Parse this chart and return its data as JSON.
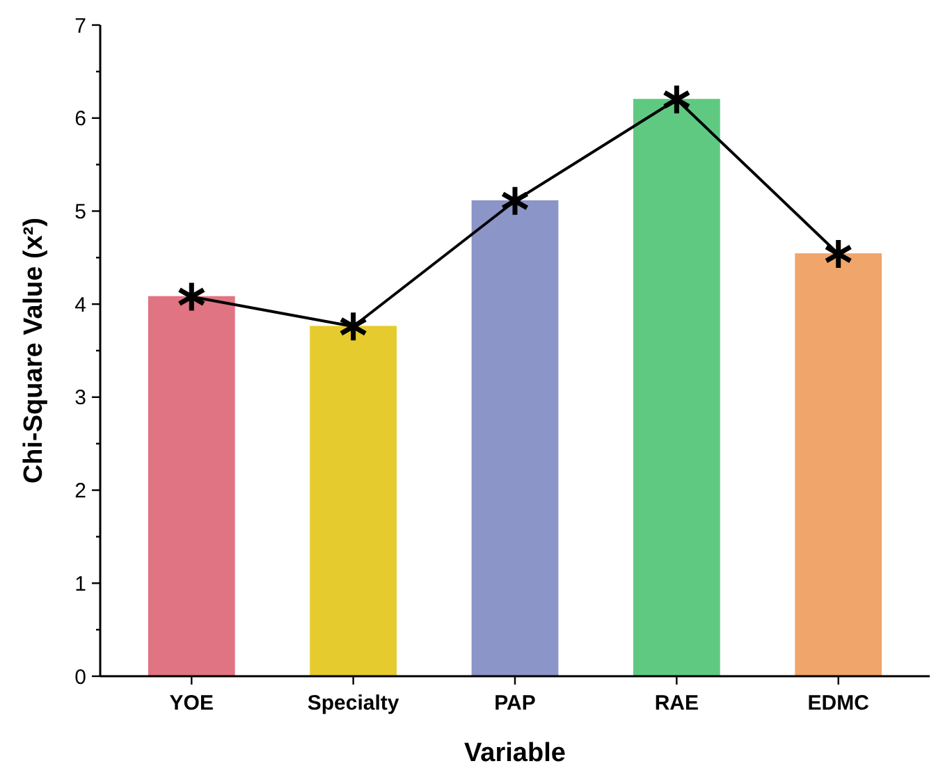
{
  "chart_data": {
    "type": "bar",
    "xlabel": "Variable",
    "ylabel": "Chi-Square Value (x²)",
    "categories": [
      "YOE",
      "Specialty",
      "PAP",
      "RAE",
      "EDMC"
    ],
    "series": [
      {
        "colors": [
          "#e07482",
          "#e6cb2e",
          "#8b95c8",
          "#5fc982",
          "#f0a56a"
        ],
        "values": [
          4.08,
          3.76,
          5.11,
          6.2,
          4.54
        ]
      },
      {
        "type": "line",
        "color": "#000000",
        "marker": "cross",
        "values": [
          4.08,
          3.76,
          5.11,
          6.2,
          4.54
        ]
      }
    ],
    "ylim": [
      0,
      7
    ],
    "yticks": [
      0,
      {
        "value": 0.5,
        "label": null
      },
      1,
      {
        "value": 1.5,
        "label": null
      },
      2,
      {
        "value": 2.5,
        "label": null
      },
      3,
      {
        "value": 3.5,
        "label": null
      },
      4,
      {
        "value": 4.5,
        "label": null
      },
      5,
      {
        "value": 5.5,
        "label": null
      },
      6,
      {
        "value": 6.5,
        "label": null
      },
      7
    ],
    "grid": false
  }
}
